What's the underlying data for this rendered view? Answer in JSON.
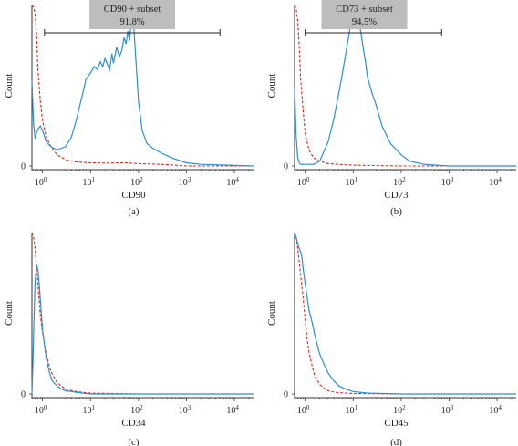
{
  "chart_data": [
    {
      "panel_label": "(a)",
      "type": "line",
      "xlabel": "CD90",
      "ylabel": "Count",
      "x_scale": "log",
      "xlim": [
        0.6,
        25000
      ],
      "ylim": [
        0,
        1
      ],
      "x_ticks": [
        {
          "base": "10",
          "exp": "0"
        },
        {
          "base": "10",
          "exp": "1"
        },
        {
          "base": "10",
          "exp": "2"
        },
        {
          "base": "10",
          "exp": "3"
        },
        {
          "base": "10",
          "exp": "4"
        }
      ],
      "y_ticks": [
        "0"
      ],
      "gate": {
        "line1": "CD90 + subset",
        "line2": "91.8%",
        "x_from": 1.1,
        "x_to": 5000
      },
      "series": [
        {
          "role": "reference",
          "color": "#d9281c",
          "dashed": true,
          "x": [
            0.6,
            0.65,
            0.7,
            0.75,
            0.8,
            0.9,
            1.0,
            1.2,
            1.5,
            2,
            3,
            5,
            10,
            20,
            50,
            100,
            300,
            1000,
            25000
          ],
          "y": [
            1.0,
            0.99,
            0.95,
            0.82,
            0.6,
            0.4,
            0.28,
            0.18,
            0.12,
            0.07,
            0.04,
            0.025,
            0.02,
            0.018,
            0.02,
            0.015,
            0.01,
            0.0,
            0.0
          ]
        },
        {
          "role": "sample",
          "color": "#2a8fd0",
          "dashed": false,
          "x": [
            0.6,
            0.65,
            0.7,
            0.75,
            0.8,
            0.9,
            1.0,
            1.2,
            1.5,
            2,
            3,
            4,
            5,
            6,
            7,
            8,
            10,
            12,
            14,
            16,
            18,
            20,
            22,
            25,
            28,
            30,
            35,
            40,
            45,
            50,
            55,
            60,
            65,
            70,
            75,
            80,
            90,
            100,
            120,
            150,
            200,
            300,
            500,
            1000,
            2000,
            25000
          ],
          "y": [
            0.53,
            0.26,
            0.17,
            0.21,
            0.23,
            0.25,
            0.22,
            0.15,
            0.12,
            0.1,
            0.12,
            0.18,
            0.28,
            0.38,
            0.46,
            0.54,
            0.58,
            0.62,
            0.6,
            0.65,
            0.62,
            0.67,
            0.64,
            0.6,
            0.7,
            0.64,
            0.74,
            0.68,
            0.72,
            0.8,
            0.76,
            0.84,
            0.78,
            0.88,
            0.9,
            0.86,
            0.62,
            0.4,
            0.22,
            0.14,
            0.11,
            0.08,
            0.05,
            0.02,
            0.01,
            0.0
          ]
        }
      ]
    },
    {
      "panel_label": "(b)",
      "type": "line",
      "xlabel": "CD73",
      "ylabel": "Count",
      "x_scale": "log",
      "xlim": [
        0.6,
        25000
      ],
      "ylim": [
        0,
        1
      ],
      "x_ticks": [
        {
          "base": "10",
          "exp": "0"
        },
        {
          "base": "10",
          "exp": "1"
        },
        {
          "base": "10",
          "exp": "2"
        },
        {
          "base": "10",
          "exp": "3"
        },
        {
          "base": "10",
          "exp": "4"
        }
      ],
      "y_ticks": [
        "0"
      ],
      "gate": {
        "line1": "CD73 + subset",
        "line2": "94.5%",
        "x_from": 1.0,
        "x_to": 700
      },
      "series": [
        {
          "role": "reference",
          "color": "#d9281c",
          "dashed": true,
          "x": [
            0.6,
            0.65,
            0.7,
            0.75,
            0.8,
            0.9,
            1.0,
            1.2,
            1.5,
            2,
            3,
            5,
            10,
            100,
            25000
          ],
          "y": [
            1.0,
            0.98,
            0.9,
            0.75,
            0.55,
            0.35,
            0.2,
            0.1,
            0.05,
            0.03,
            0.015,
            0.01,
            0.005,
            0.0,
            0.0
          ]
        },
        {
          "role": "sample",
          "color": "#2a8fd0",
          "dashed": false,
          "x": [
            0.6,
            0.65,
            0.7,
            0.75,
            0.8,
            1.0,
            1.5,
            2,
            3,
            4,
            5,
            6,
            7,
            8,
            9,
            10,
            11,
            12,
            13,
            15,
            18,
            20,
            25,
            30,
            40,
            60,
            100,
            150,
            300,
            1000,
            25000
          ],
          "y": [
            0.5,
            0.18,
            0.05,
            0.02,
            0.01,
            0.01,
            0.01,
            0.03,
            0.15,
            0.3,
            0.45,
            0.58,
            0.7,
            0.8,
            0.9,
            0.95,
            1.0,
            0.98,
            0.92,
            0.8,
            0.65,
            0.55,
            0.45,
            0.38,
            0.25,
            0.14,
            0.07,
            0.03,
            0.01,
            0.0,
            0.0
          ]
        }
      ]
    },
    {
      "panel_label": "(c)",
      "type": "line",
      "xlabel": "CD34",
      "ylabel": "Count",
      "x_scale": "log",
      "xlim": [
        0.6,
        25000
      ],
      "ylim": [
        0,
        1
      ],
      "x_ticks": [
        {
          "base": "10",
          "exp": "0"
        },
        {
          "base": "10",
          "exp": "1"
        },
        {
          "base": "10",
          "exp": "2"
        },
        {
          "base": "10",
          "exp": "3"
        },
        {
          "base": "10",
          "exp": "4"
        }
      ],
      "y_ticks": [
        "0"
      ],
      "series": [
        {
          "role": "reference",
          "color": "#d9281c",
          "dashed": true,
          "x": [
            0.6,
            0.65,
            0.7,
            0.75,
            0.8,
            0.85,
            0.9,
            1.0,
            1.2,
            1.5,
            2,
            3,
            5,
            10,
            100,
            25000
          ],
          "y": [
            1.0,
            0.97,
            0.9,
            0.78,
            0.68,
            0.58,
            0.48,
            0.38,
            0.24,
            0.14,
            0.07,
            0.03,
            0.015,
            0.005,
            0.0,
            0.0
          ]
        },
        {
          "role": "sample",
          "color": "#2a8fd0",
          "dashed": false,
          "x": [
            0.6,
            0.63,
            0.66,
            0.7,
            0.75,
            0.8,
            0.85,
            0.9,
            0.95,
            1.0,
            1.1,
            1.2,
            1.4,
            1.6,
            2,
            2.5,
            3,
            4,
            5,
            7,
            10,
            100,
            25000
          ],
          "y": [
            0.0,
            0.2,
            0.45,
            0.7,
            0.8,
            0.77,
            0.68,
            0.58,
            0.48,
            0.4,
            0.3,
            0.22,
            0.13,
            0.08,
            0.05,
            0.03,
            0.02,
            0.015,
            0.01,
            0.005,
            0.0,
            0.0,
            0.0
          ]
        }
      ]
    },
    {
      "panel_label": "(d)",
      "type": "line",
      "xlabel": "CD45",
      "ylabel": "Count",
      "x_scale": "log",
      "xlim": [
        0.6,
        25000
      ],
      "ylim": [
        0,
        1
      ],
      "x_ticks": [
        {
          "base": "10",
          "exp": "0"
        },
        {
          "base": "10",
          "exp": "1"
        },
        {
          "base": "10",
          "exp": "2"
        },
        {
          "base": "10",
          "exp": "3"
        },
        {
          "base": "10",
          "exp": "4"
        }
      ],
      "y_ticks": [
        "0"
      ],
      "series": [
        {
          "role": "reference",
          "color": "#d9281c",
          "dashed": true,
          "x": [
            0.6,
            0.65,
            0.7,
            0.75,
            0.8,
            0.9,
            1.0,
            1.1,
            1.2,
            1.4,
            1.6,
            2,
            2.5,
            3,
            4,
            5,
            10,
            100,
            25000
          ],
          "y": [
            1.0,
            0.97,
            0.9,
            0.82,
            0.74,
            0.6,
            0.46,
            0.34,
            0.26,
            0.17,
            0.11,
            0.06,
            0.035,
            0.02,
            0.012,
            0.008,
            0.003,
            0.0,
            0.0
          ]
        },
        {
          "role": "sample",
          "color": "#2a8fd0",
          "dashed": false,
          "x": [
            0.6,
            0.65,
            0.7,
            0.75,
            0.8,
            0.85,
            0.9,
            1.0,
            1.1,
            1.2,
            1.4,
            1.6,
            1.8,
            2,
            2.5,
            3,
            4,
            5,
            7,
            10,
            20,
            100,
            25000
          ],
          "y": [
            1.0,
            0.97,
            0.93,
            0.9,
            0.88,
            0.85,
            0.78,
            0.68,
            0.6,
            0.52,
            0.44,
            0.36,
            0.3,
            0.25,
            0.18,
            0.13,
            0.08,
            0.05,
            0.03,
            0.015,
            0.005,
            0.0,
            0.0
          ]
        }
      ]
    }
  ]
}
